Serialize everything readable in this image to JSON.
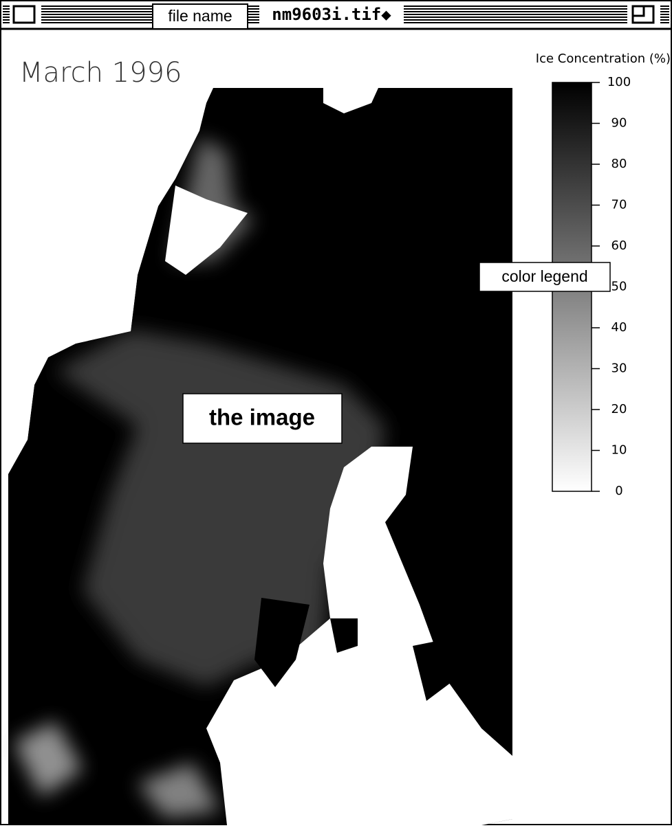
{
  "window": {
    "title": "nm9603i.tif◆"
  },
  "image": {
    "label": "March 1996"
  },
  "legend": {
    "title": "Ice Concentration (%)",
    "ticks": [
      0,
      10,
      20,
      30,
      40,
      50,
      60,
      70,
      80,
      90,
      100
    ]
  },
  "callouts": {
    "file_name": "file name",
    "color_legend": "color legend",
    "the_image": "the image"
  }
}
